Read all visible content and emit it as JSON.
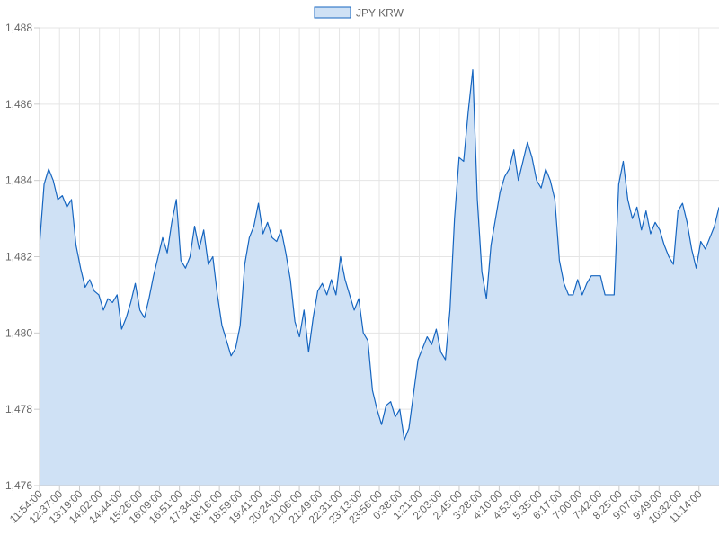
{
  "chart_data": {
    "type": "area",
    "title": "",
    "xlabel": "",
    "ylabel": "",
    "ylim": [
      1476,
      1488
    ],
    "y_ticks": [
      1476,
      1478,
      1480,
      1482,
      1484,
      1486,
      1488
    ],
    "y_tick_labels": [
      "1,476",
      "1,478",
      "1,480",
      "1,482",
      "1,484",
      "1,486",
      "1,488"
    ],
    "x_tick_labels": [
      "11:54:00",
      "12:37:00",
      "13:19:00",
      "14:02:00",
      "14:44:00",
      "15:26:00",
      "16:09:00",
      "16:51:00",
      "17:34:00",
      "18:16:00",
      "18:59:00",
      "19:41:00",
      "20:24:00",
      "21:06:00",
      "21:49:00",
      "22:31:00",
      "23:13:00",
      "23:56:00",
      "0:38:00",
      "1:21:00",
      "2:03:00",
      "2:45:00",
      "3:28:00",
      "4:10:00",
      "4:53:00",
      "5:35:00",
      "6:17:00",
      "7:00:00",
      "7:42:00",
      "8:25:00",
      "9:07:00",
      "9:49:00",
      "10:32:00",
      "11:14:00"
    ],
    "grid": true,
    "legend_position": "top-center",
    "series": [
      {
        "name": "JPY KRW",
        "line_color": "#1565c0",
        "fill_color": "#cfe1f5",
        "values": [
          1482.3,
          1483.9,
          1484.3,
          1484.0,
          1483.5,
          1483.6,
          1483.3,
          1483.5,
          1482.3,
          1481.7,
          1481.2,
          1481.4,
          1481.1,
          1481.0,
          1480.6,
          1480.9,
          1480.8,
          1481.0,
          1480.1,
          1480.4,
          1480.8,
          1481.3,
          1480.6,
          1480.4,
          1480.9,
          1481.5,
          1482.0,
          1482.5,
          1482.1,
          1482.9,
          1483.5,
          1481.9,
          1481.7,
          1482.0,
          1482.8,
          1482.2,
          1482.7,
          1481.8,
          1482.0,
          1481.0,
          1480.2,
          1479.8,
          1479.4,
          1479.6,
          1480.2,
          1481.8,
          1482.5,
          1482.8,
          1483.4,
          1482.6,
          1482.9,
          1482.5,
          1482.4,
          1482.7,
          1482.1,
          1481.4,
          1480.3,
          1479.9,
          1480.6,
          1479.5,
          1480.4,
          1481.1,
          1481.3,
          1481.0,
          1481.4,
          1481.0,
          1482.0,
          1481.4,
          1481.0,
          1480.6,
          1480.9,
          1480.0,
          1479.8,
          1478.5,
          1478.0,
          1477.6,
          1478.1,
          1478.2,
          1477.8,
          1478.0,
          1477.2,
          1477.5,
          1478.4,
          1479.3,
          1479.6,
          1479.9,
          1479.7,
          1480.1,
          1479.5,
          1479.3,
          1480.6,
          1483.0,
          1484.6,
          1484.5,
          1485.8,
          1486.9,
          1483.5,
          1481.6,
          1480.9,
          1482.3,
          1483.0,
          1483.7,
          1484.1,
          1484.3,
          1484.8,
          1484.0,
          1484.5,
          1485.0,
          1484.6,
          1484.0,
          1483.8,
          1484.3,
          1484.0,
          1483.5,
          1481.9,
          1481.3,
          1481.0,
          1481.0,
          1481.4,
          1481.0,
          1481.3,
          1481.5,
          1481.5,
          1481.5,
          1481.0,
          1481.0,
          1481.0,
          1483.9,
          1484.5,
          1483.5,
          1483.0,
          1483.3,
          1482.7,
          1483.2,
          1482.6,
          1482.9,
          1482.7,
          1482.3,
          1482.0,
          1481.8,
          1483.2,
          1483.4,
          1482.9,
          1482.2,
          1481.7,
          1482.4,
          1482.2,
          1482.5,
          1482.8,
          1483.3
        ]
      }
    ]
  }
}
